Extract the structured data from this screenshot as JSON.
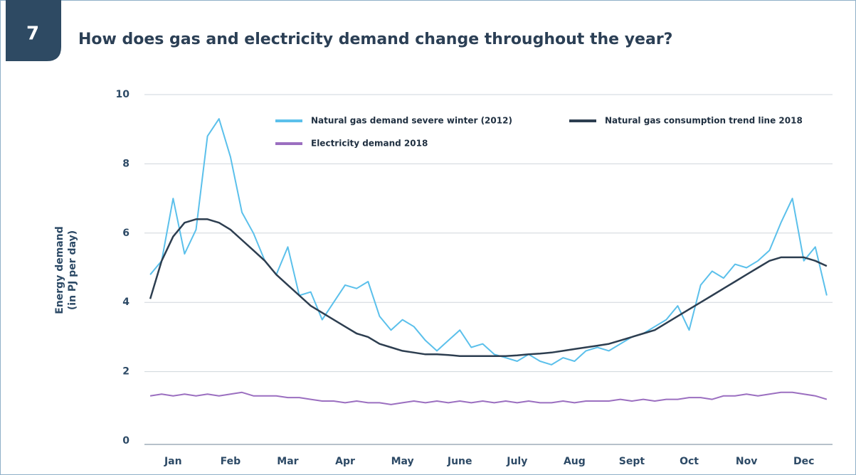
{
  "section": "7",
  "chart_data": {
    "type": "line",
    "title": "How does gas and electricity demand change throughout the year?",
    "ylabel": [
      "Energy demand",
      "(in PJ per day)"
    ],
    "categories": [
      null,
      null,
      "Jan",
      null,
      null,
      null,
      null,
      "Feb",
      null,
      null,
      null,
      null,
      "Mar",
      null,
      null,
      null,
      null,
      "Apr",
      null,
      null,
      null,
      null,
      "May",
      null,
      null,
      null,
      null,
      "June",
      null,
      null,
      null,
      null,
      "July",
      null,
      null,
      null,
      null,
      "Aug",
      null,
      null,
      null,
      null,
      "Sept",
      null,
      null,
      null,
      null,
      "Oct",
      null,
      null,
      null,
      null,
      "Nov",
      null,
      null,
      null,
      null,
      "Dec",
      null,
      null
    ],
    "ylim": [
      0,
      10
    ],
    "yticks": [
      0,
      2,
      4,
      6,
      8,
      10
    ],
    "grid": true,
    "series": [
      {
        "name": "Natural gas demand severe winter (2012)",
        "color": "#5bc0eb",
        "values": [
          4.8,
          5.2,
          7.0,
          5.4,
          6.1,
          8.8,
          9.3,
          8.2,
          6.6,
          6.0,
          5.2,
          4.8,
          5.6,
          4.2,
          4.3,
          3.5,
          4.0,
          4.5,
          4.4,
          4.6,
          3.6,
          3.2,
          3.5,
          3.3,
          2.9,
          2.6,
          2.9,
          3.2,
          2.7,
          2.8,
          2.5,
          2.4,
          2.3,
          2.5,
          2.3,
          2.2,
          2.4,
          2.3,
          2.6,
          2.7,
          2.6,
          2.8,
          3.0,
          3.1,
          3.3,
          3.5,
          3.9,
          3.2,
          4.5,
          4.9,
          4.7,
          5.1,
          5.0,
          5.2,
          5.5,
          6.3,
          7.0,
          5.2,
          5.6,
          4.2
        ]
      },
      {
        "name": "Natural gas consumption trend line 2018",
        "color": "#2d3e50",
        "values": [
          4.1,
          5.2,
          5.9,
          6.3,
          6.4,
          6.4,
          6.3,
          6.1,
          5.8,
          5.5,
          5.2,
          4.8,
          4.5,
          4.2,
          3.9,
          3.7,
          3.5,
          3.3,
          3.1,
          3.0,
          2.8,
          2.7,
          2.6,
          2.55,
          2.5,
          2.5,
          2.48,
          2.45,
          2.45,
          2.45,
          2.45,
          2.45,
          2.47,
          2.5,
          2.52,
          2.55,
          2.6,
          2.65,
          2.7,
          2.75,
          2.8,
          2.9,
          3.0,
          3.1,
          3.2,
          3.4,
          3.6,
          3.8,
          4.0,
          4.2,
          4.4,
          4.6,
          4.8,
          5.0,
          5.2,
          5.3,
          5.3,
          5.3,
          5.2,
          5.05
        ]
      },
      {
        "name": "Electricity demand 2018",
        "color": "#9b6fc0",
        "values": [
          1.3,
          1.35,
          1.3,
          1.35,
          1.3,
          1.35,
          1.3,
          1.35,
          1.4,
          1.3,
          1.3,
          1.3,
          1.25,
          1.25,
          1.2,
          1.15,
          1.15,
          1.1,
          1.15,
          1.1,
          1.1,
          1.05,
          1.1,
          1.15,
          1.1,
          1.15,
          1.1,
          1.15,
          1.1,
          1.15,
          1.1,
          1.15,
          1.1,
          1.15,
          1.1,
          1.1,
          1.15,
          1.1,
          1.15,
          1.15,
          1.15,
          1.2,
          1.15,
          1.2,
          1.15,
          1.2,
          1.2,
          1.25,
          1.25,
          1.2,
          1.3,
          1.3,
          1.35,
          1.3,
          1.35,
          1.4,
          1.4,
          1.35,
          1.3,
          1.2
        ]
      }
    ]
  }
}
